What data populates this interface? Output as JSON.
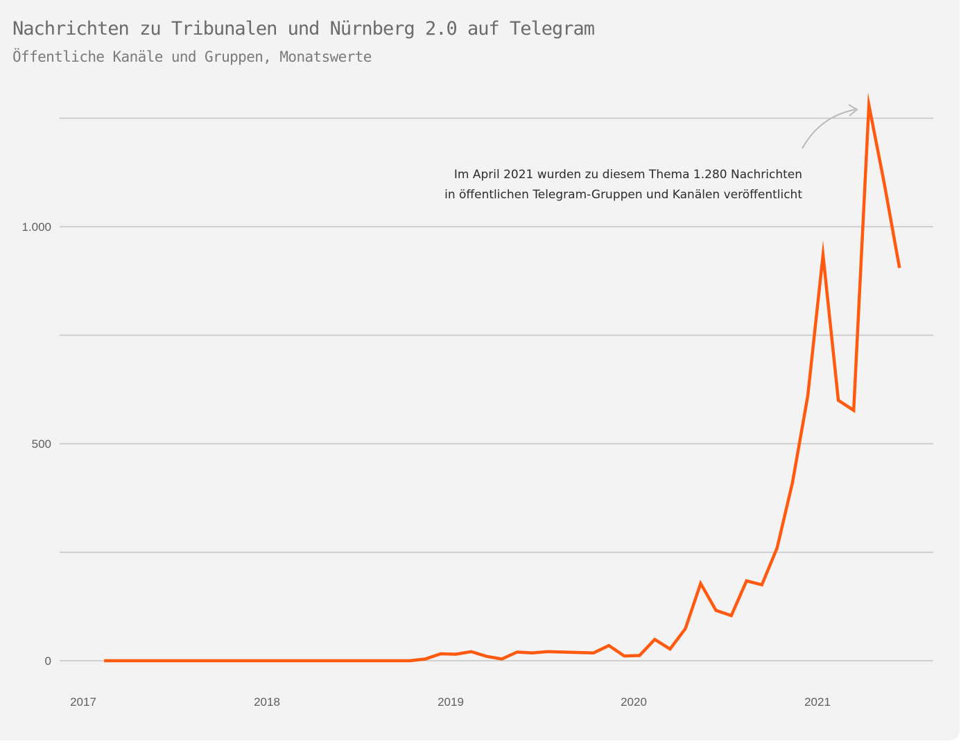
{
  "title": "Nachrichten zu Tribunalen und Nürnberg 2.0 auf Telegram",
  "subtitle": "Öffentliche Kanäle und Gruppen, Monatswerte",
  "colors": {
    "line": "#ff5a0f",
    "grid": "#c4c4c4",
    "background": "#f3f3f3",
    "arrow": "#b8b8b8"
  },
  "annotation": {
    "line1": "Im April 2021 wurden zu diesem Thema 1.280 Nachrichten",
    "line2": "in öffentlichen Telegram-Gruppen und Kanälen veröffentlicht"
  },
  "chart_data": {
    "type": "line",
    "title": "Nachrichten zu Tribunalen und Nürnberg 2.0 auf Telegram",
    "subtitle": "Öffentliche Kanäle und Gruppen, Monatswerte",
    "xlabel": "",
    "ylabel": "",
    "ylim": [
      0,
      1250
    ],
    "grid": true,
    "legend": "none",
    "y_ticks": [
      {
        "value": 0,
        "label": "0"
      },
      {
        "value": 250,
        "label": ""
      },
      {
        "value": 500,
        "label": "500"
      },
      {
        "value": 750,
        "label": ""
      },
      {
        "value": 1000,
        "label": "1.000"
      },
      {
        "value": 1250,
        "label": ""
      }
    ],
    "x_ticks": [
      "2017",
      "2018",
      "2019",
      "2020",
      "2021"
    ],
    "series": [
      {
        "x": [
          "2017-02",
          "2017-03",
          "2017-04",
          "2017-05",
          "2017-06",
          "2017-07",
          "2017-08",
          "2017-09",
          "2017-10",
          "2017-11",
          "2017-12",
          "2018-01",
          "2018-02",
          "2018-03",
          "2018-04",
          "2018-05",
          "2018-06",
          "2018-07",
          "2018-08",
          "2018-09",
          "2018-10",
          "2018-11",
          "2018-12",
          "2019-01",
          "2019-02",
          "2019-03",
          "2019-04",
          "2019-05",
          "2019-06",
          "2019-07",
          "2019-08",
          "2019-09",
          "2019-10",
          "2019-11",
          "2019-12",
          "2020-01",
          "2020-02",
          "2020-03",
          "2020-04",
          "2020-05",
          "2020-06",
          "2020-07",
          "2020-08",
          "2020-09",
          "2020-10",
          "2020-11",
          "2020-12",
          "2021-01",
          "2021-02",
          "2021-03",
          "2021-04",
          "2021-05",
          "2021-06"
        ],
        "values": [
          0,
          0,
          0,
          0,
          0,
          0,
          0,
          0,
          0,
          0,
          0,
          0,
          0,
          0,
          0,
          0,
          0,
          0,
          0,
          0,
          0,
          4,
          16,
          15,
          21,
          10,
          4,
          20,
          18,
          21,
          20,
          19,
          18,
          35,
          11,
          12,
          49,
          27,
          74,
          178,
          116,
          104,
          184,
          175,
          260,
          410,
          610,
          935,
          600,
          577,
          1280,
          1100,
          905
        ]
      }
    ]
  }
}
